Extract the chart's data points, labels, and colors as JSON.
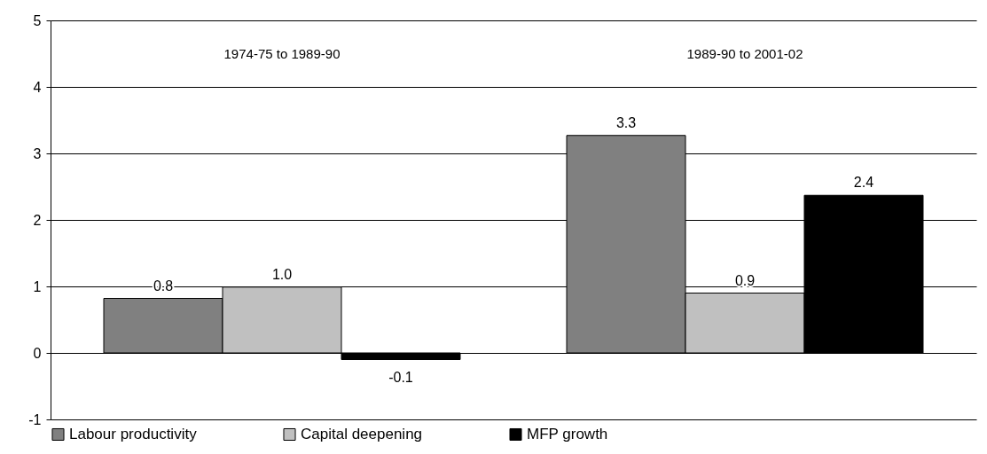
{
  "chart_data": {
    "type": "bar",
    "categories": [
      "1974-75 to 1989-90",
      "1989-90 to 2001-02"
    ],
    "series": [
      {
        "name": "Labour productivity",
        "color": "#808080",
        "values": [
          0.82,
          3.27
        ],
        "value_labels": [
          "0.8",
          "3.3"
        ]
      },
      {
        "name": "Capital deepening",
        "color": "#c0c0c0",
        "values": [
          0.99,
          0.9
        ],
        "value_labels": [
          "1.0",
          "0.9"
        ]
      },
      {
        "name": "MFP growth",
        "color": "#000000",
        "values": [
          -0.1,
          2.37
        ],
        "value_labels": [
          "-0.1",
          "2.4"
        ]
      }
    ],
    "ylim": [
      -1,
      5
    ],
    "yticks": [
      -1,
      0,
      1,
      2,
      3,
      4,
      5
    ],
    "grid": "y",
    "legend": "bottom"
  }
}
